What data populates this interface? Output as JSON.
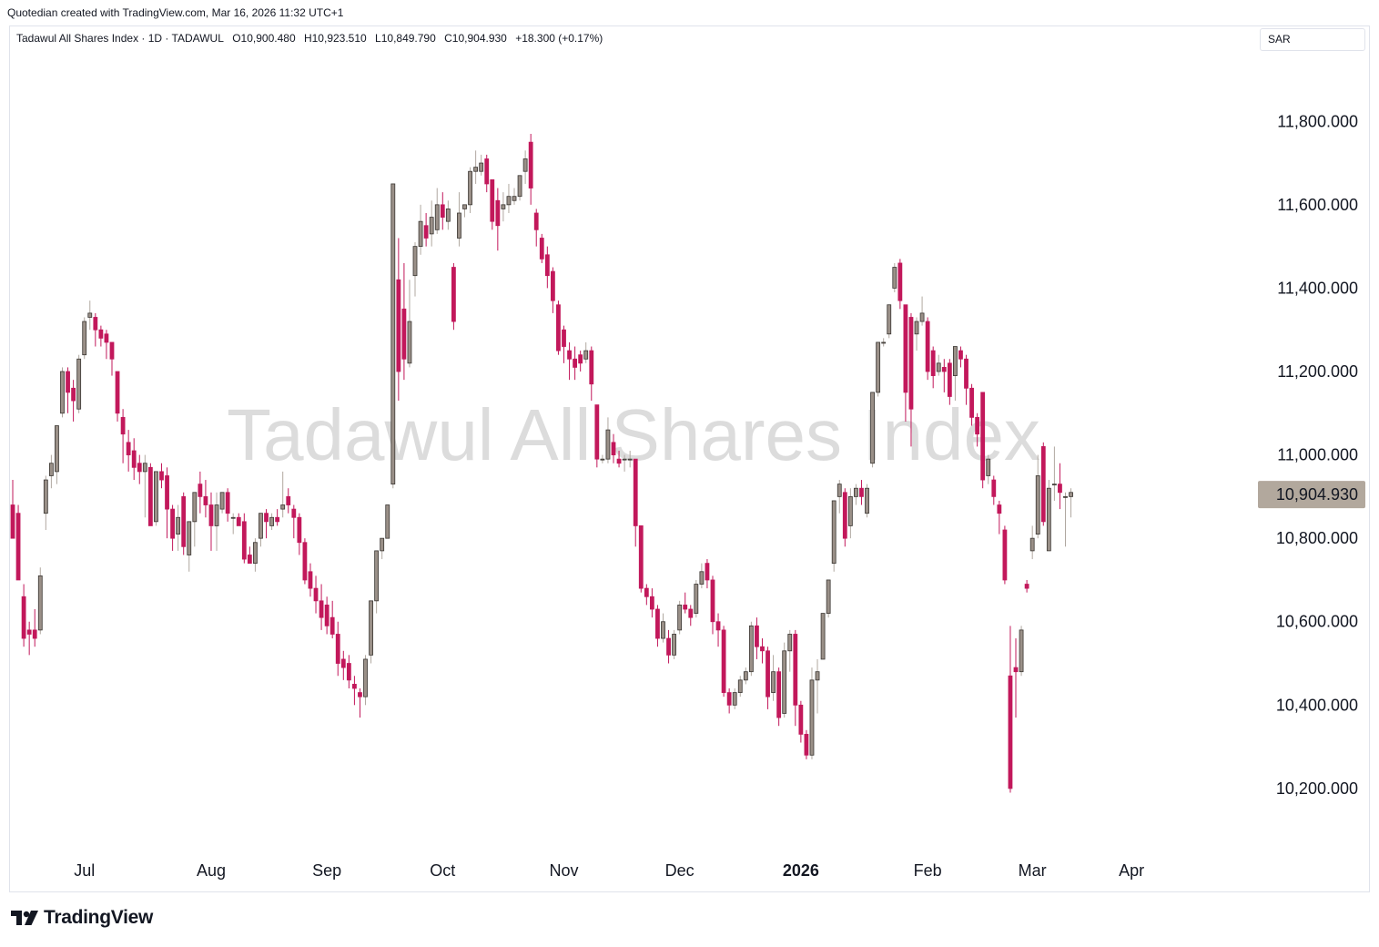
{
  "header": {
    "credit": "Quotedian created with TradingView.com, Mar 16, 2026 11:32 UTC+1"
  },
  "legend": {
    "symbol": "Tadawul All Shares Index · 1D · TADAWUL",
    "open": "O10,900.480",
    "high": "H10,923.510",
    "low": "L10,849.790",
    "close": "C10,904.930",
    "change": "+18.300 (+0.17%)"
  },
  "currency": "SAR",
  "watermark": "Tadawul All Shares Index",
  "footer": {
    "brand": "TradingView",
    "logo_icon": "tradingview-logo-icon"
  },
  "colors": {
    "up": "#9a9088",
    "down": "#c2185b",
    "wick_up": "#b0a8a0",
    "wick_down": "#c2185b",
    "last_price_bg": "#b2a89d",
    "watermark": "#dcdcdc"
  },
  "chart_data": {
    "type": "candlestick",
    "y_axis": {
      "min": 10060,
      "max": 11960,
      "ticks": [
        11800,
        11600,
        11400,
        11200,
        11000,
        10800,
        10600,
        10400,
        10200
      ],
      "tick_labels": [
        "11,800.000",
        "11,600.000",
        "11,400.000",
        "11,200.000",
        "11,000.000",
        "10,800.000",
        "10,600.000",
        "10,400.000",
        "10,200.000"
      ],
      "position": "right"
    },
    "x_axis": {
      "labels": [
        "Jul",
        "Aug",
        "Sep",
        "Oct",
        "Nov",
        "Dec",
        "2026",
        "Feb",
        "Mar",
        "Apr"
      ],
      "label_index": [
        13,
        36,
        57,
        78,
        100,
        121,
        143,
        166,
        185,
        203
      ],
      "bold": [
        "2026"
      ]
    },
    "last_price": {
      "value": 10904.93,
      "label": "10,904.930"
    },
    "candles": [
      [
        10880,
        10800,
        10870,
        10940
      ],
      [
        10860,
        10700,
        10860,
        10880
      ],
      [
        10660,
        10560,
        10690,
        10540
      ],
      [
        10580,
        10570,
        10600,
        10520
      ],
      [
        10580,
        10560,
        10630,
        10540
      ],
      [
        10580,
        10710,
        10730,
        10570
      ],
      [
        10860,
        10940,
        10950,
        10820
      ],
      [
        10950,
        10980,
        11000,
        10920
      ],
      [
        10960,
        11070,
        11070,
        10930
      ],
      [
        11100,
        11200,
        11210,
        11090
      ],
      [
        11200,
        11150,
        11210,
        11100
      ],
      [
        11160,
        11130,
        11180,
        11080
      ],
      [
        11110,
        11230,
        11240,
        11100
      ],
      [
        11240,
        11320,
        11330,
        11230
      ],
      [
        11330,
        11340,
        11370,
        11300
      ],
      [
        11330,
        11300,
        11340,
        11260
      ],
      [
        11300,
        11280,
        11310,
        11260
      ],
      [
        11290,
        11270,
        11300,
        11230
      ],
      [
        11270,
        11230,
        11270,
        11190
      ],
      [
        11200,
        11100,
        11200,
        11080
      ],
      [
        11090,
        11050,
        11110,
        10980
      ],
      [
        11030,
        11000,
        11060,
        10960
      ],
      [
        11010,
        10970,
        11040,
        10940
      ],
      [
        10980,
        10960,
        11000,
        10930
      ],
      [
        10960,
        10980,
        11000,
        10850
      ],
      [
        10970,
        10830,
        10980,
        10830
      ],
      [
        10840,
        10960,
        10960,
        10830
      ],
      [
        10960,
        10940,
        10980,
        10920
      ],
      [
        10950,
        10870,
        10970,
        10800
      ],
      [
        10870,
        10800,
        10880,
        10770
      ],
      [
        10810,
        10850,
        10880,
        10770
      ],
      [
        10900,
        10780,
        10910,
        10760
      ],
      [
        10760,
        10840,
        10840,
        10720
      ],
      [
        10840,
        10910,
        10910,
        10780
      ],
      [
        10930,
        10900,
        10960,
        10860
      ],
      [
        10900,
        10880,
        10940,
        10850
      ],
      [
        10880,
        10830,
        10910,
        10770
      ],
      [
        10830,
        10880,
        10910,
        10770
      ],
      [
        10870,
        10910,
        10910,
        10860
      ],
      [
        10910,
        10860,
        10920,
        10840
      ],
      [
        10850,
        10850,
        10860,
        10810
      ],
      [
        10850,
        10830,
        10860,
        10830
      ],
      [
        10840,
        10750,
        10860,
        10740
      ],
      [
        10760,
        10740,
        10780,
        10740
      ],
      [
        10740,
        10790,
        10800,
        10720
      ],
      [
        10800,
        10860,
        10860,
        10780
      ],
      [
        10860,
        10840,
        10870,
        10800
      ],
      [
        10830,
        10850,
        10860,
        10820
      ],
      [
        10850,
        10840,
        10870,
        10830
      ],
      [
        10870,
        10880,
        10960,
        10850
      ],
      [
        10900,
        10880,
        10920,
        10860
      ],
      [
        10870,
        10850,
        10880,
        10800
      ],
      [
        10850,
        10790,
        10860,
        10760
      ],
      [
        10790,
        10700,
        10800,
        10690
      ],
      [
        10720,
        10680,
        10740,
        10660
      ],
      [
        10680,
        10650,
        10710,
        10620
      ],
      [
        10650,
        10610,
        10690,
        10580
      ],
      [
        10640,
        10590,
        10660,
        10570
      ],
      [
        10610,
        10570,
        10650,
        10560
      ],
      [
        10570,
        10500,
        10600,
        10470
      ],
      [
        10510,
        10490,
        10530,
        10460
      ],
      [
        10500,
        10460,
        10520,
        10440
      ],
      [
        10450,
        10440,
        10470,
        10400
      ],
      [
        10430,
        10420,
        10440,
        10370
      ],
      [
        10420,
        10510,
        10520,
        10400
      ],
      [
        10520,
        10650,
        10650,
        10500
      ],
      [
        10650,
        10770,
        10770,
        10620
      ],
      [
        10770,
        10800,
        10800,
        10750
      ],
      [
        10800,
        10880,
        10880,
        10800
      ],
      [
        10930,
        11650,
        11650,
        10920
      ],
      [
        11420,
        11200,
        11520,
        11130
      ],
      [
        11350,
        11230,
        11460,
        11180
      ],
      [
        11220,
        11320,
        11420,
        11210
      ],
      [
        11430,
        11500,
        11510,
        11380
      ],
      [
        11500,
        11560,
        11600,
        11480
      ],
      [
        11550,
        11520,
        11580,
        11500
      ],
      [
        11530,
        11570,
        11610,
        11500
      ],
      [
        11540,
        11600,
        11640,
        11530
      ],
      [
        11600,
        11570,
        11630,
        11540
      ],
      [
        11560,
        11590,
        11610,
        11540
      ],
      [
        11450,
        11320,
        11460,
        11300
      ],
      [
        11520,
        11580,
        11630,
        11500
      ],
      [
        11590,
        11600,
        11600,
        11570
      ],
      [
        11600,
        11680,
        11690,
        11580
      ],
      [
        11680,
        11690,
        11730,
        11650
      ],
      [
        11680,
        11700,
        11720,
        11670
      ],
      [
        11710,
        11650,
        11720,
        11630
      ],
      [
        11660,
        11560,
        11660,
        11540
      ],
      [
        11610,
        11550,
        11640,
        11490
      ],
      [
        11590,
        11600,
        11630,
        11560
      ],
      [
        11600,
        11620,
        11650,
        11580
      ],
      [
        11610,
        11620,
        11640,
        11600
      ],
      [
        11620,
        11670,
        11670,
        11610
      ],
      [
        11680,
        11710,
        11730,
        11650
      ],
      [
        11750,
        11640,
        11770,
        11600
      ],
      [
        11580,
        11540,
        11590,
        11500
      ],
      [
        11520,
        11470,
        11530,
        11460
      ],
      [
        11480,
        11430,
        11500,
        11400
      ],
      [
        11440,
        11370,
        11450,
        11340
      ],
      [
        11360,
        11250,
        11370,
        11240
      ],
      [
        11300,
        11260,
        11310,
        11220
      ],
      [
        11250,
        11230,
        11270,
        11180
      ],
      [
        11230,
        11210,
        11260,
        11180
      ],
      [
        11240,
        11220,
        11250,
        11200
      ],
      [
        11230,
        11250,
        11270,
        11220
      ],
      [
        11250,
        11170,
        11260,
        11130
      ],
      [
        11120,
        10990,
        11120,
        10970
      ],
      [
        10990,
        10990,
        11000,
        10980
      ],
      [
        10990,
        11060,
        11090,
        10980
      ],
      [
        11030,
        11000,
        11050,
        10980
      ],
      [
        10990,
        10980,
        11010,
        10970
      ],
      [
        10990,
        10990,
        11000,
        10960
      ],
      [
        10990,
        10990,
        11010,
        10970
      ],
      [
        10990,
        10830,
        10990,
        10780
      ],
      [
        10830,
        10680,
        10830,
        10670
      ],
      [
        10680,
        10660,
        10690,
        10640
      ],
      [
        10660,
        10630,
        10680,
        10610
      ],
      [
        10630,
        10560,
        10640,
        10540
      ],
      [
        10560,
        10600,
        10620,
        10550
      ],
      [
        10560,
        10520,
        10580,
        10500
      ],
      [
        10520,
        10570,
        10580,
        10510
      ],
      [
        10580,
        10640,
        10650,
        10570
      ],
      [
        10640,
        10630,
        10670,
        10620
      ],
      [
        10630,
        10610,
        10640,
        10590
      ],
      [
        10620,
        10690,
        10700,
        10610
      ],
      [
        10690,
        10720,
        10740,
        10680
      ],
      [
        10740,
        10700,
        10750,
        10680
      ],
      [
        10700,
        10600,
        10710,
        10570
      ],
      [
        10600,
        10580,
        10620,
        10540
      ],
      [
        10580,
        10430,
        10590,
        10420
      ],
      [
        10430,
        10400,
        10440,
        10380
      ],
      [
        10400,
        10430,
        10440,
        10390
      ],
      [
        10430,
        10460,
        10470,
        10420
      ],
      [
        10460,
        10480,
        10490,
        10450
      ],
      [
        10480,
        10590,
        10600,
        10470
      ],
      [
        10590,
        10540,
        10610,
        10510
      ],
      [
        10540,
        10530,
        10560,
        10500
      ],
      [
        10530,
        10420,
        10540,
        10390
      ],
      [
        10430,
        10480,
        10520,
        10410
      ],
      [
        10480,
        10370,
        10490,
        10350
      ],
      [
        10380,
        10530,
        10550,
        10370
      ],
      [
        10530,
        10570,
        10580,
        10480
      ],
      [
        10570,
        10400,
        10580,
        10350
      ],
      [
        10400,
        10330,
        10410,
        10310
      ],
      [
        10330,
        10280,
        10340,
        10270
      ],
      [
        10280,
        10460,
        10490,
        10270
      ],
      [
        10460,
        10480,
        10510,
        10380
      ],
      [
        10510,
        10620,
        10620,
        10510
      ],
      [
        10620,
        10700,
        10700,
        10610
      ],
      [
        10740,
        10890,
        10890,
        10720
      ],
      [
        10900,
        10930,
        10940,
        10860
      ],
      [
        10910,
        10800,
        10920,
        10780
      ],
      [
        10830,
        10900,
        10920,
        10800
      ],
      [
        10900,
        10920,
        10930,
        10880
      ],
      [
        10920,
        10900,
        10940,
        10880
      ],
      [
        10860,
        10920,
        10930,
        10850
      ],
      [
        10980,
        11150,
        11150,
        10970
      ],
      [
        11150,
        11270,
        11270,
        11140
      ],
      [
        11270,
        11270,
        11280,
        11260
      ],
      [
        11290,
        11360,
        11360,
        11280
      ],
      [
        11400,
        11450,
        11460,
        11390
      ],
      [
        11460,
        11370,
        11470,
        11350
      ],
      [
        11360,
        11150,
        11360,
        11080
      ],
      [
        11330,
        11110,
        11340,
        11020
      ],
      [
        11290,
        11320,
        11330,
        11250
      ],
      [
        11320,
        11340,
        11380,
        11310
      ],
      [
        11320,
        11200,
        11330,
        11180
      ],
      [
        11250,
        11190,
        11260,
        11160
      ],
      [
        11200,
        11220,
        11240,
        11190
      ],
      [
        11210,
        11200,
        11230,
        11150
      ],
      [
        11220,
        11140,
        11230,
        11120
      ],
      [
        11190,
        11260,
        11260,
        11130
      ],
      [
        11250,
        11230,
        11260,
        11210
      ],
      [
        11230,
        11160,
        11240,
        11120
      ],
      [
        11160,
        11090,
        11170,
        11070
      ],
      [
        11090,
        11050,
        11100,
        11020
      ],
      [
        11150,
        10940,
        11150,
        10920
      ],
      [
        10950,
        10990,
        11000,
        10930
      ],
      [
        10940,
        10900,
        10950,
        10880
      ],
      [
        10880,
        10860,
        10890,
        10810
      ],
      [
        10820,
        10700,
        10830,
        10690
      ],
      [
        10470,
        10200,
        10590,
        10190
      ],
      [
        10490,
        10480,
        10560,
        10370
      ],
      [
        10480,
        10580,
        10590,
        10470
      ],
      [
        10690,
        10680,
        10700,
        10670
      ],
      [
        10770,
        10800,
        10830,
        10750
      ],
      [
        10810,
        10950,
        11000,
        10800
      ],
      [
        11020,
        10840,
        11030,
        10830
      ],
      [
        10770,
        10920,
        10940,
        10770
      ],
      [
        10930,
        10930,
        11020,
        10890
      ],
      [
        10930,
        10910,
        10980,
        10870
      ],
      [
        10900,
        10900,
        10910,
        10780
      ],
      [
        10900,
        10910,
        10920,
        10850
      ]
    ]
  }
}
